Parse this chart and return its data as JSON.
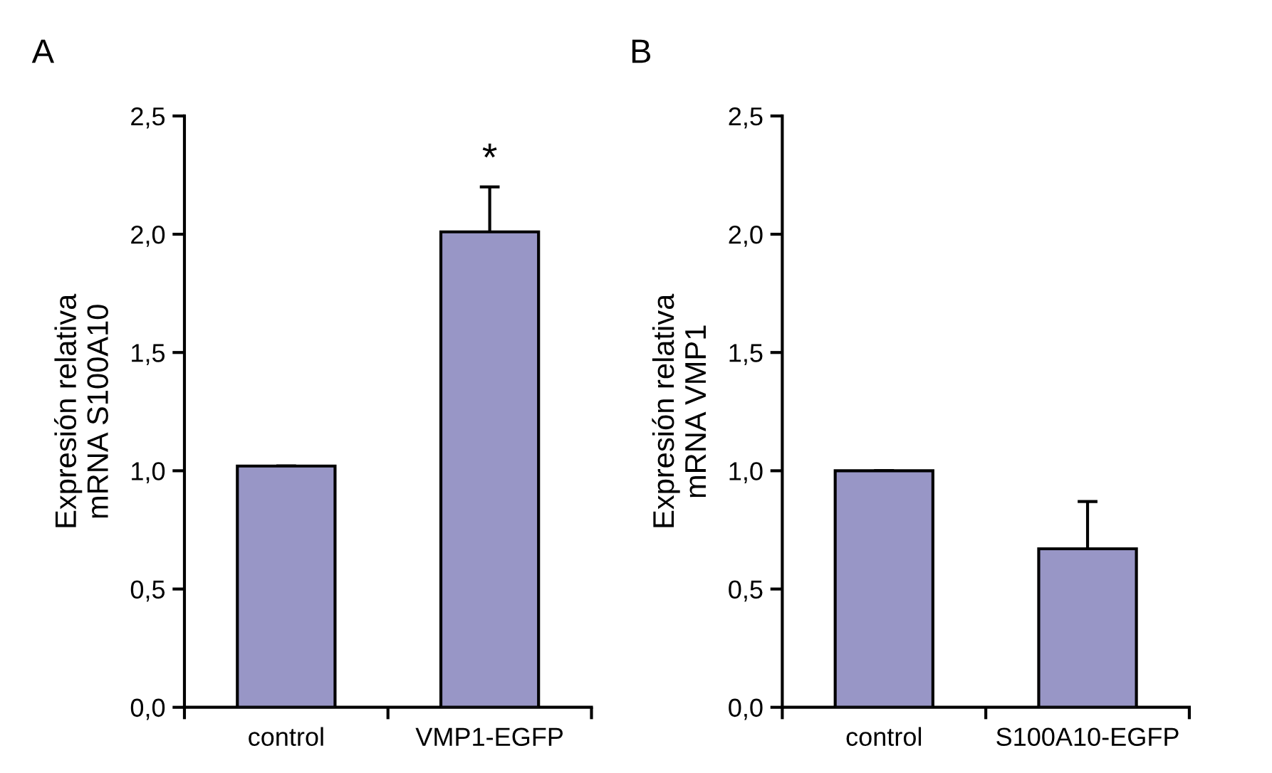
{
  "chart_data": [
    {
      "type": "bar",
      "title": "A",
      "ylabel": "Expresión relativa\nmRNA S100A10",
      "categories": [
        "control",
        "VMP1-EGFP"
      ],
      "values": [
        1.02,
        2.01
      ],
      "errors": [
        null,
        0.19
      ],
      "color": "#9896c6",
      "ylim": [
        0,
        2.5
      ],
      "yticks": [
        {
          "value": 0,
          "label": "0,0"
        },
        {
          "value": 0.5,
          "label": "0,5"
        },
        {
          "value": 1,
          "label": "1,0"
        },
        {
          "value": 1.5,
          "label": "1,5"
        },
        {
          "value": 2,
          "label": "2,0"
        },
        {
          "value": 2.5,
          "label": "2,5"
        }
      ],
      "annotations": [
        "*"
      ],
      "grid": false,
      "legend": false
    },
    {
      "type": "bar",
      "title": "B",
      "ylabel": "Expresión relativa\nmRNA VMP1",
      "categories": [
        "control",
        "S100A10-EGFP"
      ],
      "values": [
        1.0,
        0.67
      ],
      "errors": [
        null,
        0.2
      ],
      "color": "#9896c6",
      "ylim": [
        0,
        2.5
      ],
      "yticks": [
        {
          "value": 0,
          "label": "0,0"
        },
        {
          "value": 0.5,
          "label": "0,5"
        },
        {
          "value": 1,
          "label": "1,0"
        },
        {
          "value": 1.5,
          "label": "1,5"
        },
        {
          "value": 2,
          "label": "2,0"
        },
        {
          "value": 2.5,
          "label": "2,5"
        }
      ],
      "grid": false,
      "legend": false
    }
  ]
}
